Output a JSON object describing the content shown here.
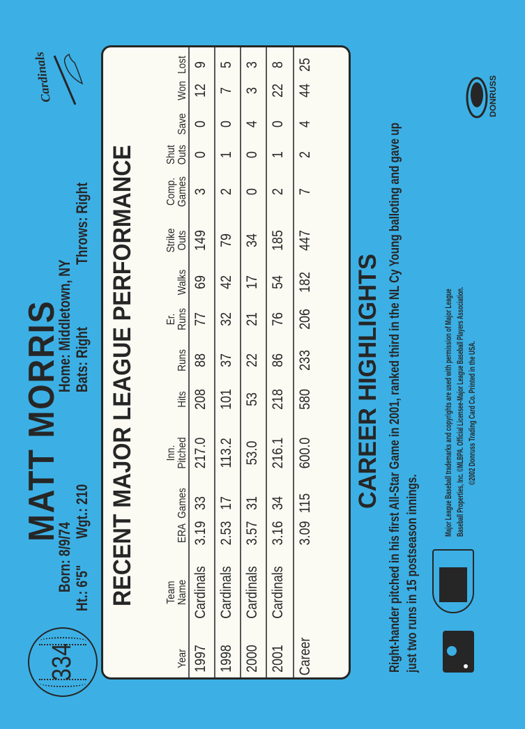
{
  "card_number": "334",
  "player": {
    "name": "MATT MORRIS",
    "born": "Born: 8/9/74",
    "home": "Home: Middletown, NY",
    "height": "Ht.: 6'5\"",
    "weight": "Wgt.: 210",
    "bats": "Bats: Right",
    "throws": "Throws: Right"
  },
  "team_logo_text": "Cardinals",
  "stats": {
    "title": "RECENT MAJOR LEAGUE PERFORMANCE",
    "headers": [
      [
        "",
        "Year"
      ],
      [
        "Team",
        "Name"
      ],
      [
        "",
        "ERA"
      ],
      [
        "",
        "Games"
      ],
      [
        "Inn.",
        "Pitched"
      ],
      [
        "",
        "Hits"
      ],
      [
        "",
        "Runs"
      ],
      [
        "Er.",
        "Runs"
      ],
      [
        "",
        "Walks"
      ],
      [
        "Strike",
        "Outs"
      ],
      [
        "Comp.",
        "Games"
      ],
      [
        "Shut",
        "Outs"
      ],
      [
        "",
        "Save"
      ],
      [
        "",
        "Won"
      ],
      [
        "",
        "Lost"
      ]
    ],
    "rows": [
      [
        "1997",
        "Cardinals",
        "3.19",
        "33",
        "217.0",
        "208",
        "88",
        "77",
        "69",
        "149",
        "3",
        "0",
        "0",
        "12",
        "9"
      ],
      [
        "1998",
        "Cardinals",
        "2.53",
        "17",
        "113.2",
        "101",
        "37",
        "32",
        "42",
        "79",
        "2",
        "1",
        "0",
        "7",
        "5"
      ],
      [
        "2000",
        "Cardinals",
        "3.57",
        "31",
        "53.0",
        "53",
        "22",
        "21",
        "17",
        "34",
        "0",
        "0",
        "4",
        "3",
        "3"
      ],
      [
        "2001",
        "Cardinals",
        "3.16",
        "34",
        "216.1",
        "218",
        "86",
        "76",
        "54",
        "185",
        "2",
        "1",
        "0",
        "22",
        "8"
      ],
      [
        "Career",
        "",
        "3.09",
        "115",
        "600.0",
        "580",
        "233",
        "206",
        "182",
        "447",
        "7",
        "2",
        "4",
        "44",
        "25"
      ]
    ]
  },
  "highlights": {
    "title": "CAREER HIGHLIGHTS",
    "line1": "Right-hander pitched in his first All-Star Game in 2001, ranked third in the NL Cy Young balloting and gave up",
    "line2": "just two runs in 15 postseason innings."
  },
  "legal": {
    "line1": "Major League Baseball trademarks and copyrights are used with permission of Major League",
    "line2": "Baseball Properties, Inc. ©MLBPA. Official Licensee-Major League Baseball Players Association.",
    "line3": "©2002 Donruss Trading Card Co. Printed in the USA."
  },
  "brand": "DONRUSS",
  "colors": {
    "background": "#3cb0e5",
    "box": "#fbfbf4",
    "ink": "#262626"
  }
}
